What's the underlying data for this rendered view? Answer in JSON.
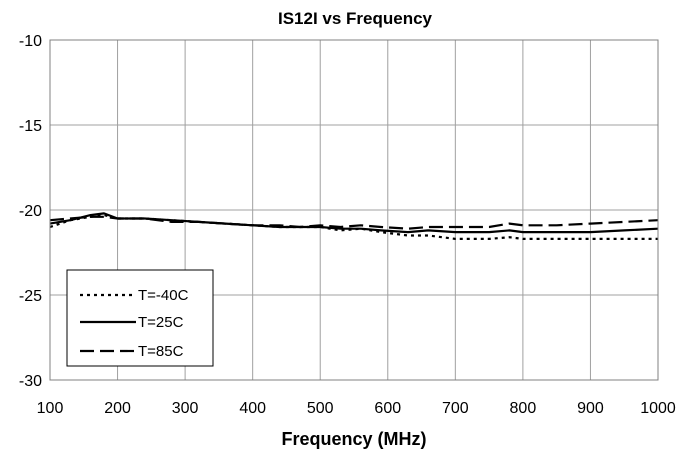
{
  "chart_data": {
    "type": "line",
    "title": "IS12I vs Frequency",
    "xlabel": "Frequency (MHz)",
    "ylabel": "",
    "xlim": [
      100,
      1000
    ],
    "ylim": [
      -30,
      -10
    ],
    "x_ticks": [
      100,
      200,
      300,
      400,
      500,
      600,
      700,
      800,
      900,
      1000
    ],
    "y_ticks": [
      -10,
      -15,
      -20,
      -25,
      -30
    ],
    "grid": true,
    "legend_position": "bottom-left",
    "series": [
      {
        "name": "T=-40C",
        "dash": "dotted",
        "x": [
          100,
          130,
          160,
          180,
          200,
          240,
          280,
          320,
          360,
          400,
          440,
          470,
          500,
          530,
          560,
          590,
          630,
          660,
          700,
          750,
          780,
          800,
          850,
          900,
          950,
          1000
        ],
        "y": [
          -21.0,
          -20.6,
          -20.4,
          -20.3,
          -20.5,
          -20.5,
          -20.6,
          -20.7,
          -20.8,
          -20.9,
          -21.0,
          -21.0,
          -21.0,
          -21.2,
          -21.1,
          -21.3,
          -21.5,
          -21.5,
          -21.7,
          -21.7,
          -21.6,
          -21.7,
          -21.7,
          -21.7,
          -21.7,
          -21.7
        ]
      },
      {
        "name": "T=25C",
        "dash": "solid",
        "x": [
          100,
          130,
          160,
          180,
          200,
          240,
          280,
          320,
          360,
          400,
          440,
          470,
          500,
          530,
          560,
          590,
          630,
          660,
          700,
          750,
          780,
          800,
          850,
          900,
          950,
          1000
        ],
        "y": [
          -20.8,
          -20.6,
          -20.3,
          -20.2,
          -20.5,
          -20.5,
          -20.6,
          -20.7,
          -20.8,
          -20.9,
          -21.0,
          -21.0,
          -21.0,
          -21.1,
          -21.1,
          -21.2,
          -21.3,
          -21.2,
          -21.3,
          -21.3,
          -21.2,
          -21.3,
          -21.3,
          -21.3,
          -21.2,
          -21.1
        ]
      },
      {
        "name": "T=85C",
        "dash": "dashed",
        "x": [
          100,
          130,
          160,
          180,
          200,
          240,
          280,
          320,
          360,
          400,
          440,
          470,
          500,
          530,
          560,
          590,
          630,
          660,
          700,
          750,
          780,
          800,
          850,
          900,
          950,
          1000
        ],
        "y": [
          -20.6,
          -20.5,
          -20.4,
          -20.4,
          -20.5,
          -20.5,
          -20.7,
          -20.7,
          -20.8,
          -20.9,
          -20.9,
          -21.0,
          -20.9,
          -21.0,
          -20.9,
          -21.0,
          -21.1,
          -21.0,
          -21.0,
          -21.0,
          -20.8,
          -20.9,
          -20.9,
          -20.8,
          -20.7,
          -20.6
        ]
      }
    ]
  }
}
